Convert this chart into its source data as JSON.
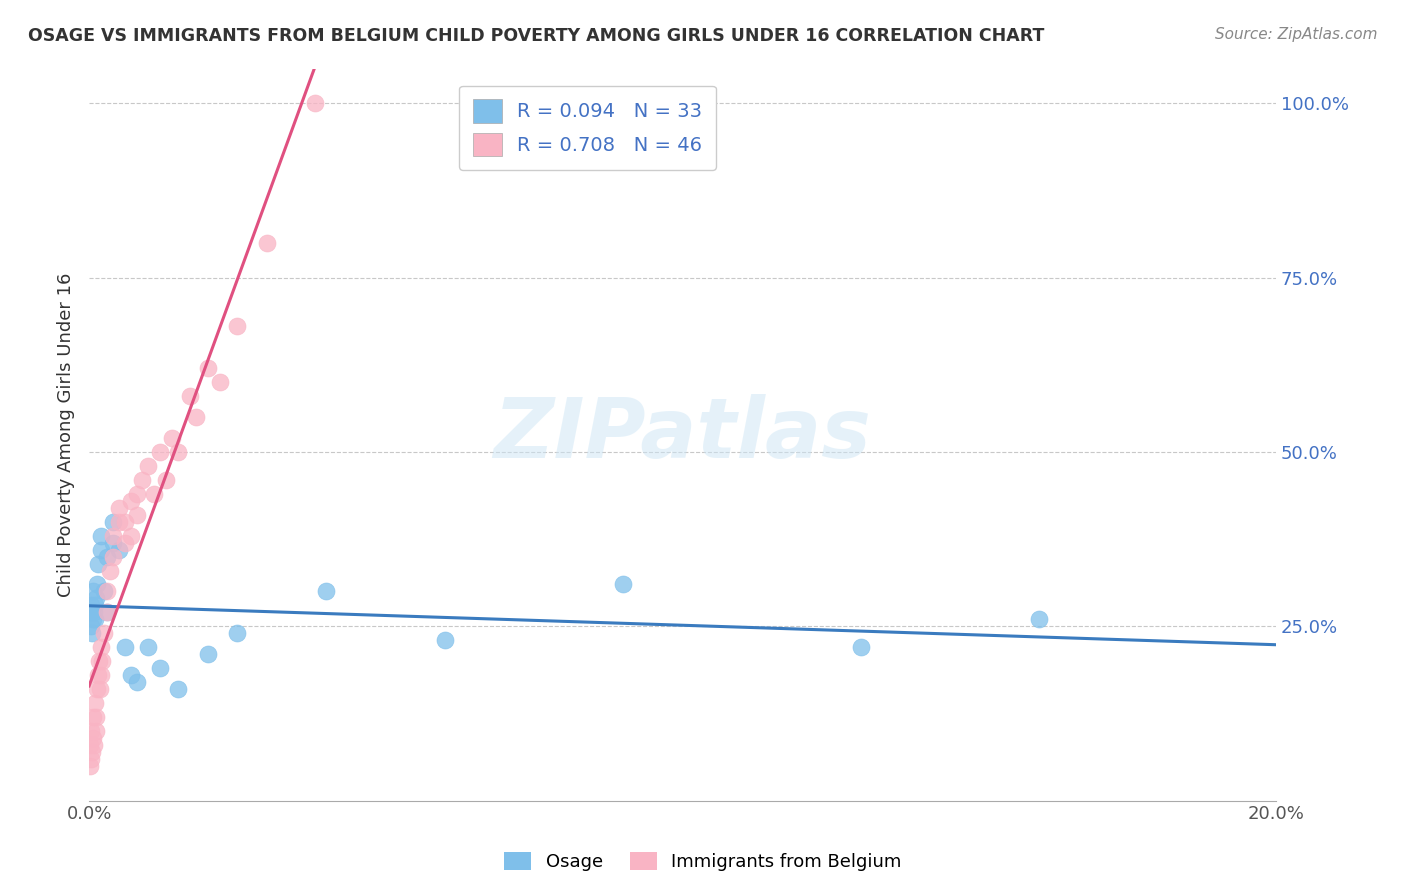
{
  "title": "OSAGE VS IMMIGRANTS FROM BELGIUM CHILD POVERTY AMONG GIRLS UNDER 16 CORRELATION CHART",
  "source": "Source: ZipAtlas.com",
  "ylabel": "Child Poverty Among Girls Under 16",
  "legend_label1": "Osage",
  "legend_label2": "Immigrants from Belgium",
  "R1": 0.094,
  "N1": 33,
  "R2": 0.708,
  "N2": 46,
  "color_blue": "#7fbfea",
  "color_pink": "#f9b4c4",
  "color_blue_line": "#3a7bbf",
  "color_pink_line": "#e05080",
  "color_grid": "#c8c8c8",
  "osage_x": [
    0.0002,
    0.0003,
    0.0004,
    0.0005,
    0.0006,
    0.0007,
    0.0008,
    0.001,
    0.001,
    0.0012,
    0.0013,
    0.0015,
    0.002,
    0.002,
    0.0025,
    0.003,
    0.003,
    0.004,
    0.004,
    0.005,
    0.006,
    0.007,
    0.008,
    0.01,
    0.012,
    0.015,
    0.02,
    0.025,
    0.04,
    0.06,
    0.09,
    0.13,
    0.16
  ],
  "osage_y": [
    0.27,
    0.25,
    0.28,
    0.24,
    0.26,
    0.3,
    0.27,
    0.28,
    0.26,
    0.29,
    0.31,
    0.34,
    0.36,
    0.38,
    0.3,
    0.27,
    0.35,
    0.37,
    0.4,
    0.36,
    0.22,
    0.18,
    0.17,
    0.22,
    0.19,
    0.16,
    0.21,
    0.24,
    0.3,
    0.23,
    0.31,
    0.22,
    0.26
  ],
  "belgium_x": [
    0.0001,
    0.0002,
    0.0003,
    0.0004,
    0.0005,
    0.0006,
    0.0007,
    0.0008,
    0.001,
    0.0011,
    0.0012,
    0.0013,
    0.0015,
    0.0016,
    0.0018,
    0.002,
    0.002,
    0.0022,
    0.0025,
    0.003,
    0.003,
    0.0035,
    0.004,
    0.004,
    0.005,
    0.005,
    0.006,
    0.006,
    0.007,
    0.007,
    0.008,
    0.008,
    0.009,
    0.01,
    0.011,
    0.012,
    0.013,
    0.014,
    0.015,
    0.017,
    0.018,
    0.02,
    0.022,
    0.025,
    0.03,
    0.038
  ],
  "belgium_y": [
    0.05,
    0.08,
    0.06,
    0.1,
    0.07,
    0.09,
    0.12,
    0.08,
    0.14,
    0.1,
    0.12,
    0.16,
    0.18,
    0.2,
    0.16,
    0.22,
    0.18,
    0.2,
    0.24,
    0.27,
    0.3,
    0.33,
    0.35,
    0.38,
    0.4,
    0.42,
    0.37,
    0.4,
    0.43,
    0.38,
    0.44,
    0.41,
    0.46,
    0.48,
    0.44,
    0.5,
    0.46,
    0.52,
    0.5,
    0.58,
    0.55,
    0.62,
    0.6,
    0.68,
    0.8,
    1.0
  ],
  "xlim": [
    0.0,
    0.2
  ],
  "ylim": [
    0.0,
    1.05
  ],
  "yticks": [
    0.25,
    0.5,
    0.75,
    1.0
  ],
  "ytick_labels": [
    "25.0%",
    "50.0%",
    "75.0%",
    "100.0%"
  ],
  "xtick_positions": [
    0.0,
    0.05,
    0.1,
    0.15,
    0.2
  ],
  "xtick_labels": [
    "0.0%",
    "",
    "",
    "",
    "20.0%"
  ]
}
